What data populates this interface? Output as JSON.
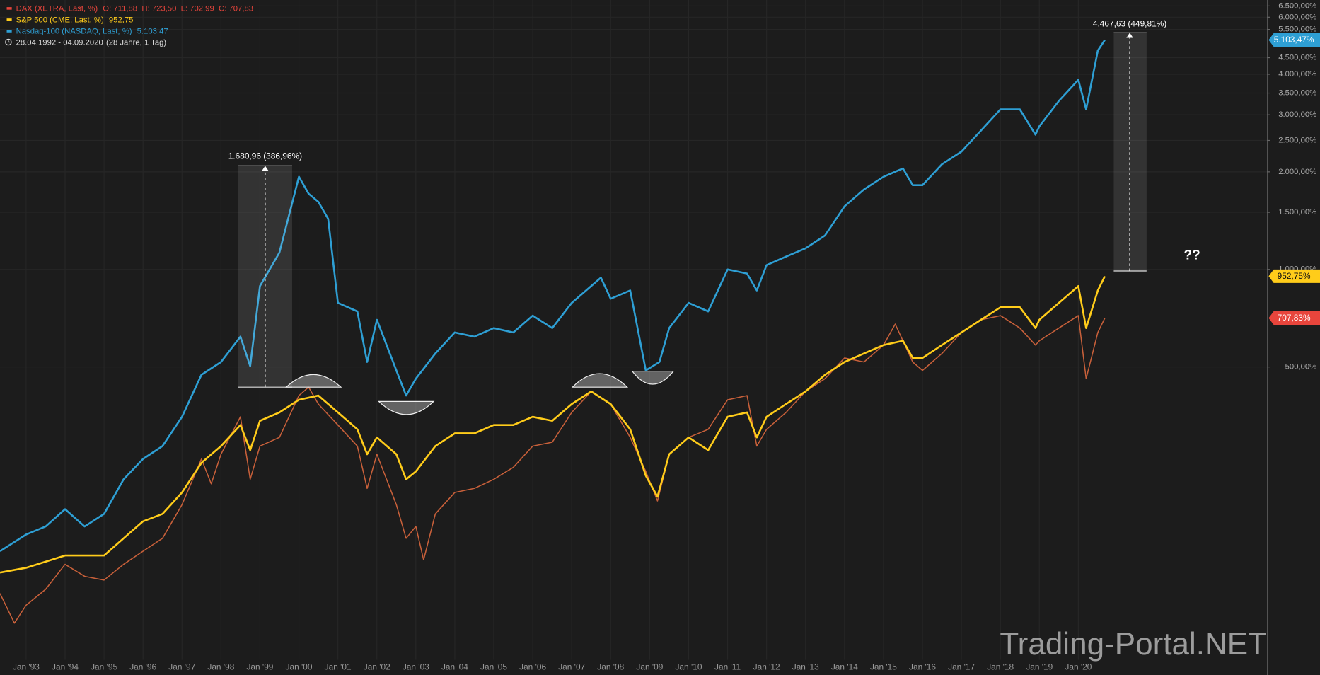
{
  "chart_data": {
    "type": "line",
    "log": true,
    "grid": true,
    "xlim": [
      1992.33,
      2024.84
    ],
    "ylim": [
      62.4,
      6780
    ],
    "xticks": [
      {
        "value": 1993,
        "label": "Jan '93"
      },
      {
        "value": 1994,
        "label": "Jan '94"
      },
      {
        "value": 1995,
        "label": "Jan '95"
      },
      {
        "value": 1996,
        "label": "Jan '96"
      },
      {
        "value": 1997,
        "label": "Jan '97"
      },
      {
        "value": 1998,
        "label": "Jan '98"
      },
      {
        "value": 1999,
        "label": "Jan '99"
      },
      {
        "value": 2000,
        "label": "Jan '00"
      },
      {
        "value": 2001,
        "label": "Jan '01"
      },
      {
        "value": 2002,
        "label": "Jan '02"
      },
      {
        "value": 2003,
        "label": "Jan '03"
      },
      {
        "value": 2004,
        "label": "Jan '04"
      },
      {
        "value": 2005,
        "label": "Jan '05"
      },
      {
        "value": 2006,
        "label": "Jan '06"
      },
      {
        "value": 2007,
        "label": "Jan '07"
      },
      {
        "value": 2008,
        "label": "Jan '08"
      },
      {
        "value": 2009,
        "label": "Jan '09"
      },
      {
        "value": 2010,
        "label": "Jan '10"
      },
      {
        "value": 2011,
        "label": "Jan '11"
      },
      {
        "value": 2012,
        "label": "Jan '12"
      },
      {
        "value": 2013,
        "label": "Jan '13"
      },
      {
        "value": 2014,
        "label": "Jan '14"
      },
      {
        "value": 2015,
        "label": "Jan '15"
      },
      {
        "value": 2016,
        "label": "Jan '16"
      },
      {
        "value": 2017,
        "label": "Jan '17"
      },
      {
        "value": 2018,
        "label": "Jan '18"
      },
      {
        "value": 2019,
        "label": "Jan '19"
      },
      {
        "value": 2020,
        "label": "Jan '20"
      }
    ],
    "yticks": [
      {
        "value": 500,
        "label": "500,00%"
      },
      {
        "value": 1000,
        "label": "1.000,00%"
      },
      {
        "value": 1500,
        "label": "1.500,00%"
      },
      {
        "value": 2000,
        "label": "2.000,00%"
      },
      {
        "value": 2500,
        "label": "2.500,00%"
      },
      {
        "value": 3000,
        "label": "3.000,00%"
      },
      {
        "value": 3500,
        "label": "3.500,00%"
      },
      {
        "value": 4000,
        "label": "4.000,00%"
      },
      {
        "value": 4500,
        "label": "4.500,00%"
      },
      {
        "value": 5500,
        "label": "5.500,00%"
      },
      {
        "value": 6000,
        "label": "6.000,00%"
      },
      {
        "value": 6500,
        "label": "6.500,00%"
      }
    ],
    "series": [
      {
        "name": "DAX (XETRA, Last, %)",
        "legend_text": "O: 711,88  H: 723,50  L: 702,99  C: 707,83",
        "color": "#e8453c",
        "line_color": "#c8603a",
        "last_label": "707,83%",
        "x": [
          1992.33,
          1992.7,
          1993.0,
          1993.5,
          1994.0,
          1994.5,
          1995.0,
          1995.5,
          1996.0,
          1996.5,
          1997.0,
          1997.5,
          1997.75,
          1998.0,
          1998.5,
          1998.75,
          1999.0,
          1999.5,
          2000.0,
          2000.25,
          2000.5,
          2001.0,
          2001.5,
          2001.75,
          2002.0,
          2002.5,
          2002.75,
          2003.0,
          2003.2,
          2003.5,
          2004.0,
          2004.5,
          2005.0,
          2005.5,
          2006.0,
          2006.5,
          2007.0,
          2007.5,
          2008.0,
          2008.5,
          2008.9,
          2009.2,
          2009.5,
          2010.0,
          2010.5,
          2011.0,
          2011.5,
          2011.75,
          2012.0,
          2012.5,
          2013.0,
          2013.5,
          2014.0,
          2014.5,
          2015.0,
          2015.3,
          2015.75,
          2016.0,
          2016.5,
          2017.0,
          2017.5,
          2018.0,
          2018.5,
          2018.9,
          2019.0,
          2019.5,
          2020.0,
          2020.2,
          2020.5,
          2020.68
        ],
        "values": [
          100,
          81,
          92,
          103,
          123,
          113,
          110,
          123,
          135,
          148,
          188,
          260,
          218,
          269,
          351,
          225,
          285,
          303,
          408,
          433,
          384,
          331,
          285,
          211,
          269,
          188,
          148,
          161,
          127,
          176,
          205,
          211,
          225,
          245,
          285,
          293,
          362,
          420,
          384,
          303,
          238,
          193,
          269,
          303,
          321,
          396,
          408,
          285,
          321,
          362,
          420,
          460,
          533,
          518,
          584,
          678,
          518,
          488,
          550,
          639,
          699,
          720,
          659,
          584,
          602,
          659,
          720,
          460,
          639,
          707.83
        ]
      },
      {
        "name": "S&P 500 (CME, Last, %)",
        "legend_text": "952,75",
        "color": "#ffcc1a",
        "line_color": "#ffcc1a",
        "last_label": "952,75%",
        "x": [
          1992.33,
          1993.0,
          1994.0,
          1995.0,
          1995.5,
          1996.0,
          1996.5,
          1997.0,
          1997.5,
          1998.0,
          1998.5,
          1998.75,
          1999.0,
          1999.5,
          2000.0,
          2000.5,
          2001.0,
          2001.5,
          2001.75,
          2002.0,
          2002.5,
          2002.75,
          2003.0,
          2003.5,
          2004.0,
          2004.5,
          2005.0,
          2005.5,
          2006.0,
          2006.5,
          2007.0,
          2007.5,
          2008.0,
          2008.5,
          2008.9,
          2009.2,
          2009.5,
          2010.0,
          2010.5,
          2011.0,
          2011.5,
          2011.75,
          2012.0,
          2012.5,
          2013.0,
          2013.5,
          2014.0,
          2014.5,
          2015.0,
          2015.5,
          2015.75,
          2016.0,
          2016.5,
          2017.0,
          2017.5,
          2018.0,
          2018.5,
          2018.9,
          2019.0,
          2019.5,
          2020.0,
          2020.2,
          2020.5,
          2020.68
        ],
        "values": [
          116,
          120,
          131,
          131,
          148,
          167,
          176,
          205,
          253,
          285,
          331,
          277,
          341,
          362,
          396,
          408,
          362,
          321,
          269,
          303,
          269,
          225,
          238,
          285,
          312,
          312,
          331,
          331,
          351,
          341,
          384,
          420,
          384,
          321,
          231,
          199,
          269,
          303,
          277,
          351,
          362,
          303,
          351,
          384,
          420,
          473,
          518,
          550,
          584,
          602,
          533,
          533,
          584,
          639,
          699,
          764,
          764,
          659,
          699,
          788,
          888,
          659,
          861,
          952.75
        ]
      },
      {
        "name": "Nasdaq-100 (NASDAQ, Last, %)",
        "legend_text": "5.103,47",
        "color": "#2e9fd4",
        "line_color": "#2e9fd4",
        "last_label": "5.103,47%",
        "x": [
          1992.33,
          1993.0,
          1993.5,
          1994.0,
          1994.5,
          1995.0,
          1995.5,
          1996.0,
          1996.5,
          1997.0,
          1997.5,
          1998.0,
          1998.5,
          1998.75,
          1999.0,
          1999.5,
          2000.0,
          2000.25,
          2000.5,
          2000.75,
          2001.0,
          2001.5,
          2001.75,
          2002.0,
          2002.5,
          2002.75,
          2003.0,
          2003.5,
          2004.0,
          2004.5,
          2005.0,
          2005.5,
          2006.0,
          2006.5,
          2007.0,
          2007.75,
          2008.0,
          2008.5,
          2008.9,
          2009.25,
          2009.5,
          2010.0,
          2010.5,
          2011.0,
          2011.5,
          2011.75,
          2012.0,
          2012.5,
          2013.0,
          2013.5,
          2014.0,
          2014.5,
          2015.0,
          2015.5,
          2015.75,
          2016.0,
          2016.5,
          2017.0,
          2017.5,
          2018.0,
          2018.5,
          2018.9,
          2019.0,
          2019.5,
          2020.0,
          2020.2,
          2020.5,
          2020.68
        ],
        "values": [
          135,
          152,
          161,
          182,
          161,
          176,
          225,
          260,
          285,
          351,
          473,
          518,
          620,
          503,
          888,
          1127,
          1931,
          1713,
          1616,
          1432,
          788,
          742,
          518,
          699,
          488,
          408,
          460,
          550,
          639,
          620,
          659,
          639,
          720,
          659,
          788,
          943,
          812,
          861,
          488,
          518,
          659,
          788,
          742,
          1000,
          971,
          861,
          1031,
          1095,
          1162,
          1272,
          1566,
          1765,
          1931,
          2049,
          1819,
          1819,
          2110,
          2310,
          2680,
          3118,
          3118,
          2604,
          2764,
          3310,
          3846,
          3118,
          4733,
          5103.47
        ]
      }
    ],
    "date_range": "28.04.1992 - 04.09.2020",
    "duration": "(28 Jahre, 1 Tag)",
    "measures": [
      {
        "label": "1.680,96 (386,96%)"
      },
      {
        "label": "4.467,63 (449,81%)"
      }
    ],
    "question": "??",
    "watermark": "Trading-Portal.NET"
  }
}
